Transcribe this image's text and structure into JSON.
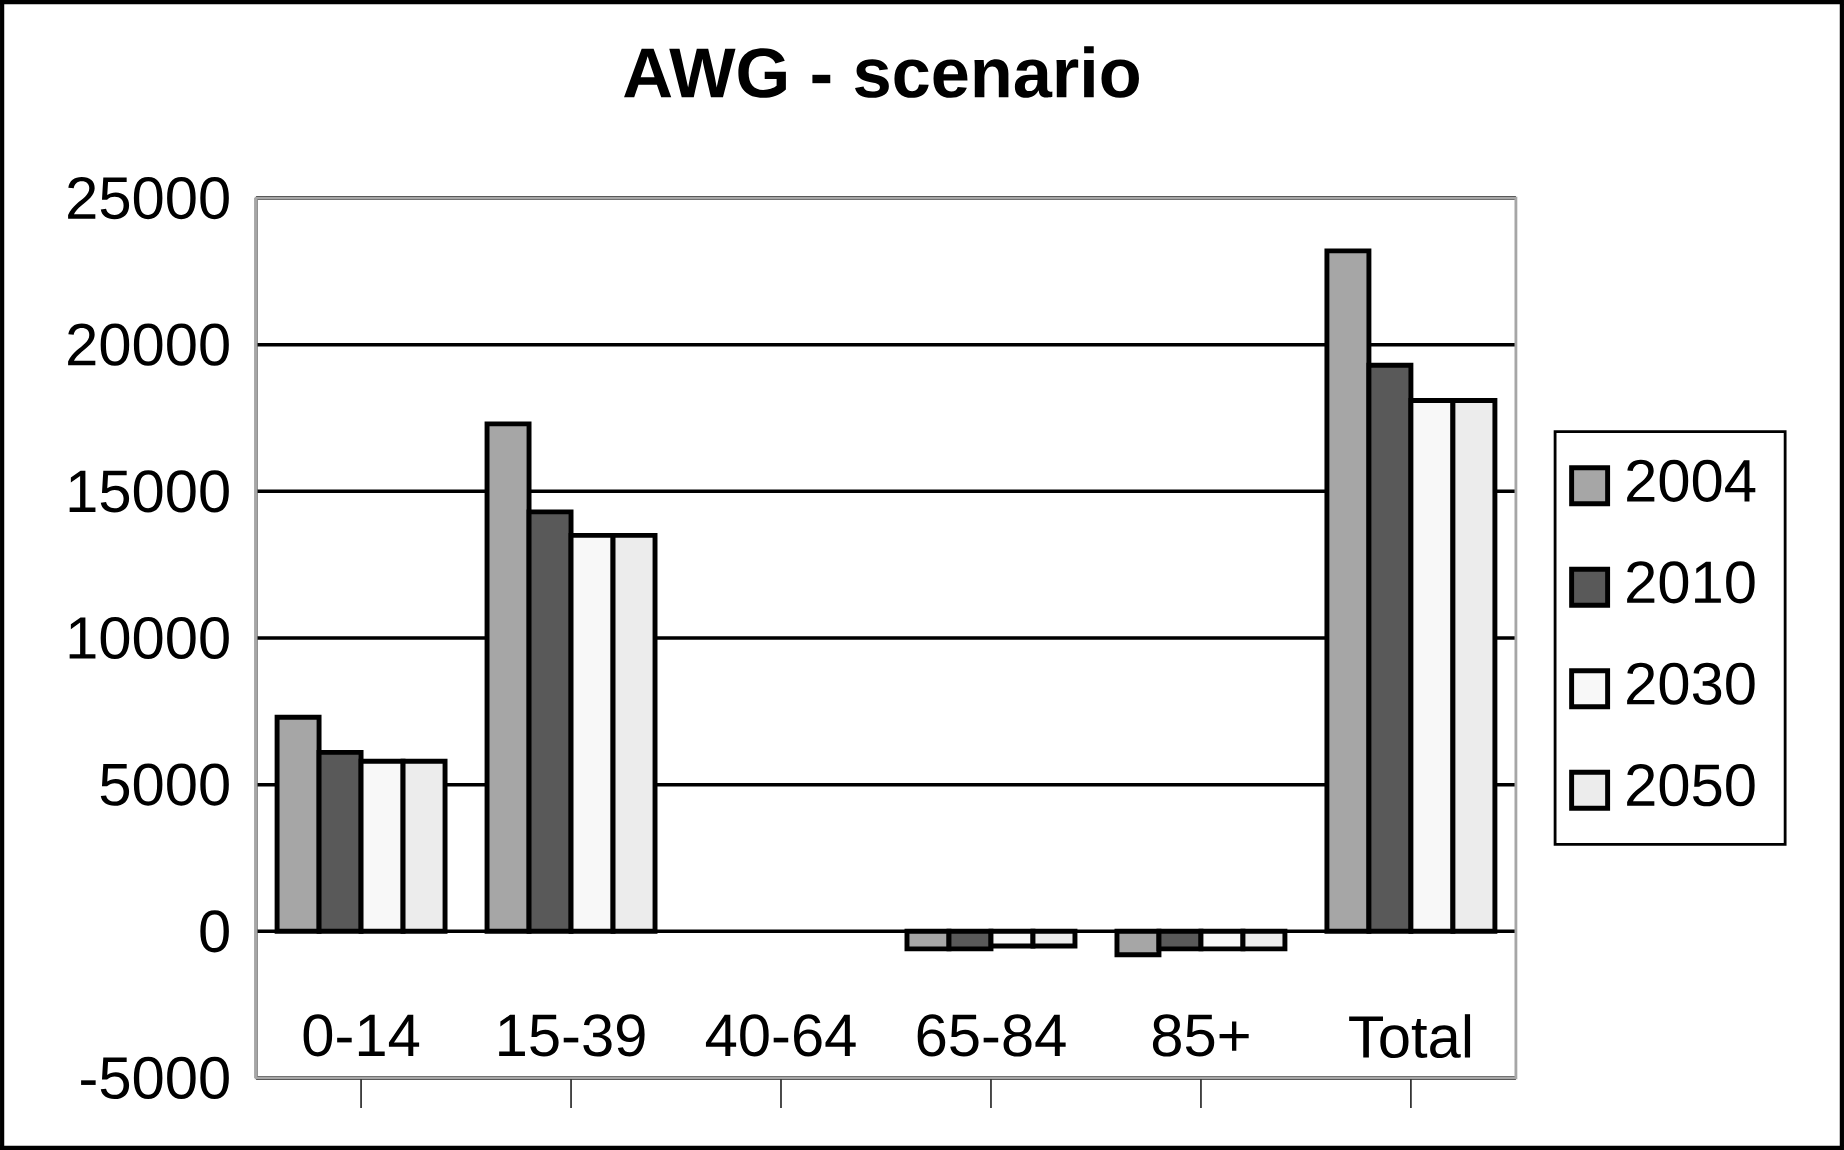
{
  "chart_data": {
    "type": "bar",
    "title": "AWG - scenario",
    "categories": [
      "0-14",
      "15-39",
      "40-64",
      "65-84",
      "85+",
      "Total"
    ],
    "series": [
      {
        "name": "2004",
        "color": "#a6a6a6",
        "values": [
          7300,
          17300,
          null,
          -600,
          -800,
          23200
        ]
      },
      {
        "name": "2010",
        "color": "#595959",
        "values": [
          6100,
          14300,
          null,
          -600,
          -600,
          19300
        ]
      },
      {
        "name": "2030",
        "color": "#f8f8f8",
        "values": [
          5800,
          13500,
          null,
          -500,
          -600,
          18100
        ]
      },
      {
        "name": "2050",
        "color": "#ececec",
        "values": [
          5800,
          13500,
          null,
          -500,
          -600,
          18100
        ]
      }
    ],
    "ylim": [
      -5000,
      25000
    ],
    "yticks": [
      -5000,
      0,
      5000,
      10000,
      15000,
      20000,
      25000
    ],
    "grid": "y",
    "legend": "right"
  }
}
